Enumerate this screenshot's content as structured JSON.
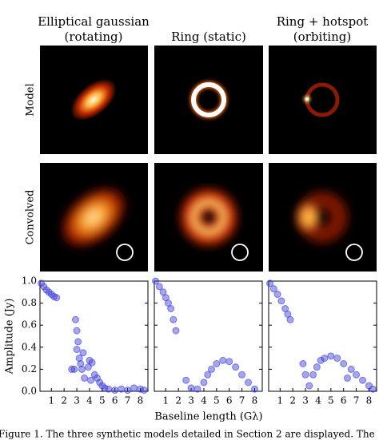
{
  "figure": {
    "column_titles": [
      [
        "Elliptical gaussian",
        "(rotating)"
      ],
      [
        "Ring (static)"
      ],
      [
        "Ring + hotspot",
        "(orbiting)"
      ]
    ],
    "row_labels": [
      "Model",
      "Convolved"
    ],
    "y_label": "Amplitude (Jy)",
    "x_label": "Baseline length (Gλ)"
  },
  "chart_data": [
    {
      "type": "scatter",
      "color": "#3a3ad8",
      "x": [
        0.2,
        0.4,
        0.6,
        0.8,
        1.0,
        1.2,
        1.4,
        2.9,
        3.0,
        3.1,
        3.0,
        3.2,
        3.3,
        3.5,
        3.4,
        2.8,
        2.6,
        3.6,
        3.9,
        4.0,
        4.2,
        4.1,
        4.4,
        4.6,
        4.8,
        5.0,
        5.2,
        5.5,
        6.0,
        6.5,
        7.0,
        7.5,
        8.0,
        8.3
      ],
      "values": [
        0.98,
        0.95,
        0.92,
        0.9,
        0.88,
        0.86,
        0.85,
        0.65,
        0.55,
        0.45,
        0.38,
        0.3,
        0.25,
        0.35,
        0.2,
        0.2,
        0.2,
        0.12,
        0.22,
        0.28,
        0.26,
        0.1,
        0.15,
        0.12,
        0.08,
        0.05,
        0.03,
        0.02,
        0.01,
        0.02,
        0.01,
        0.03,
        0.02,
        0.01
      ],
      "xlim": [
        0.1,
        8.6
      ],
      "ylim": [
        0,
        1.0
      ],
      "xticks": [
        1,
        2,
        3,
        4,
        5,
        6,
        7,
        8
      ],
      "yticks": [
        {
          "value": 0,
          "label": "0.0"
        },
        {
          "value": 0.2,
          "label": "0.2"
        },
        {
          "value": 0.4,
          "label": "0.4"
        },
        {
          "value": 0.6,
          "label": "0.6"
        },
        {
          "value": 0.8,
          "label": "0.8"
        },
        {
          "value": 1.0,
          "label": "1.0"
        }
      ]
    },
    {
      "type": "scatter",
      "color": "#3a3ad8",
      "x": [
        0.2,
        0.5,
        0.8,
        1.0,
        1.2,
        1.4,
        1.6,
        1.8,
        2.6,
        3.0,
        3.5,
        4.0,
        4.3,
        4.6,
        5.0,
        5.5,
        6.0,
        6.5,
        7.0,
        7.5,
        8.0
      ],
      "values": [
        1.0,
        0.95,
        0.9,
        0.85,
        0.8,
        0.75,
        0.65,
        0.55,
        0.1,
        0.03,
        0.02,
        0.08,
        0.15,
        0.2,
        0.25,
        0.28,
        0.27,
        0.22,
        0.15,
        0.08,
        0.02
      ],
      "xlim": [
        0.1,
        8.6
      ],
      "ylim": [
        0,
        1.0
      ],
      "xticks": [
        1,
        2,
        3,
        4,
        5,
        6,
        7,
        8
      ]
    },
    {
      "type": "scatter",
      "color": "#3a3ad8",
      "x": [
        0.2,
        0.5,
        0.8,
        1.1,
        1.4,
        1.6,
        1.8,
        2.8,
        3.0,
        3.3,
        3.6,
        3.9,
        4.2,
        4.5,
        5.0,
        5.5,
        6.0,
        6.3,
        6.6,
        7.0,
        7.5,
        8.0,
        8.3
      ],
      "values": [
        0.98,
        0.93,
        0.88,
        0.82,
        0.75,
        0.7,
        0.65,
        0.25,
        0.15,
        0.05,
        0.15,
        0.22,
        0.28,
        0.3,
        0.32,
        0.3,
        0.25,
        0.12,
        0.2,
        0.15,
        0.1,
        0.05,
        0.02
      ],
      "xlim": [
        0.1,
        8.6
      ],
      "ylim": [
        0,
        1.0
      ],
      "xticks": [
        1,
        2,
        3,
        4,
        5,
        6,
        7,
        8
      ]
    }
  ],
  "caption": "Figure 1. The three synthetic models detailed in Section 2 are displayed. The"
}
